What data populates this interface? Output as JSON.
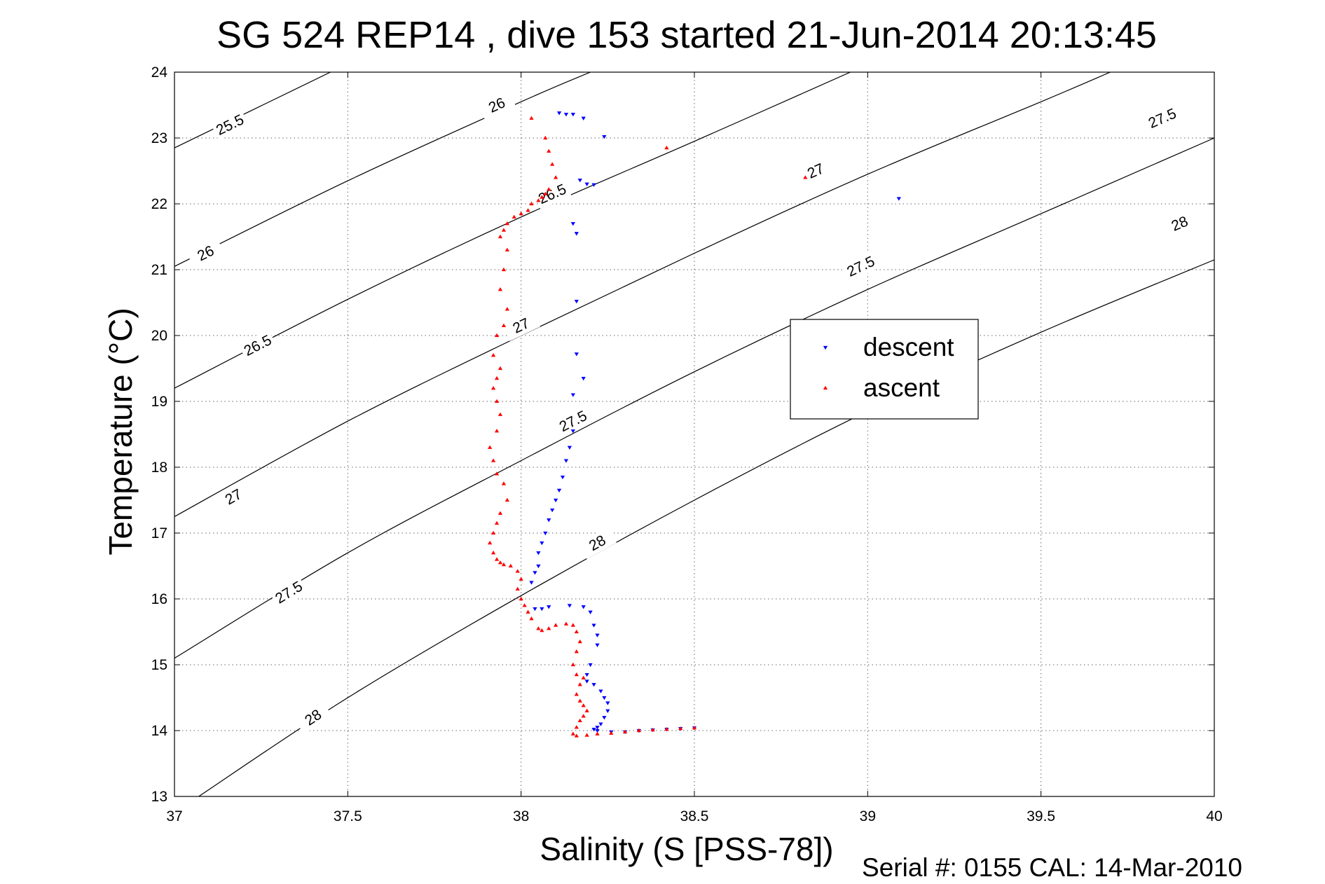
{
  "figure": {
    "title": "SG 524   REP14  , dive 153 started 21-Jun-2014 20:13:45",
    "footer": "Serial #: 0155  CAL: 14-Mar-2010"
  },
  "chart_data": {
    "type": "scatter",
    "title": "SG 524   REP14  , dive 153 started 21-Jun-2014 20:13:45",
    "xlabel": "Salinity (S [PSS-78])",
    "ylabel": "Temperature (°C)",
    "xlim": [
      37,
      40
    ],
    "ylim": [
      13,
      24
    ],
    "xticks": [
      "37",
      "37.5",
      "38",
      "38.5",
      "39",
      "39.5",
      "40"
    ],
    "yticks": [
      "13",
      "14",
      "15",
      "16",
      "17",
      "18",
      "19",
      "20",
      "21",
      "22",
      "23",
      "24"
    ],
    "grid": true,
    "legend_position": "center-right",
    "density_contours": [
      {
        "label": "25.5",
        "points": [
          [
            37,
            22.85
          ],
          [
            37.45,
            24.0
          ]
        ],
        "label_at": [
          37.16,
          23.2
        ]
      },
      {
        "label": "26",
        "points": [
          [
            37,
            21.05
          ],
          [
            37.5,
            22.35
          ],
          [
            38,
            23.55
          ],
          [
            38.2,
            24.0
          ]
        ],
        "label_at": [
          37.09,
          21.25
        ]
      },
      {
        "label": "26",
        "points": [
          [
            37,
            21.05
          ],
          [
            37.5,
            22.35
          ],
          [
            38,
            23.55
          ],
          [
            38.2,
            24.0
          ]
        ],
        "label_at": [
          37.93,
          23.5
        ]
      },
      {
        "label": "26.5",
        "points": [
          [
            37,
            19.2
          ],
          [
            37.5,
            20.55
          ],
          [
            38,
            21.8
          ],
          [
            38.5,
            22.95
          ],
          [
            38.95,
            24.0
          ]
        ],
        "label_at": [
          37.24,
          19.85
        ]
      },
      {
        "label": "26.5",
        "points": [
          [
            37,
            19.2
          ],
          [
            37.5,
            20.55
          ],
          [
            38,
            21.8
          ],
          [
            38.5,
            22.95
          ],
          [
            38.95,
            24.0
          ]
        ],
        "label_at": [
          38.09,
          22.15
        ]
      },
      {
        "label": "27",
        "points": [
          [
            37,
            17.25
          ],
          [
            37.5,
            18.7
          ],
          [
            38,
            20.0
          ],
          [
            38.5,
            21.25
          ],
          [
            39,
            22.45
          ],
          [
            39.5,
            23.55
          ],
          [
            39.7,
            24.0
          ]
        ],
        "label_at": [
          37.17,
          17.55
        ]
      },
      {
        "label": "27",
        "points": [
          [
            37,
            17.25
          ],
          [
            37.5,
            18.7
          ],
          [
            38,
            20.0
          ],
          [
            38.5,
            21.25
          ],
          [
            39,
            22.45
          ],
          [
            39.5,
            23.55
          ],
          [
            39.7,
            24.0
          ]
        ],
        "label_at": [
          38.0,
          20.15
        ]
      },
      {
        "label": "27",
        "points": [
          [
            37,
            17.25
          ],
          [
            37.5,
            18.7
          ],
          [
            38,
            20.0
          ],
          [
            38.5,
            21.25
          ],
          [
            39,
            22.45
          ],
          [
            39.5,
            23.55
          ],
          [
            39.7,
            24.0
          ]
        ],
        "label_at": [
          38.85,
          22.5
        ]
      },
      {
        "label": "27.5",
        "points": [
          [
            37,
            15.1
          ],
          [
            37.5,
            16.7
          ],
          [
            38,
            18.1
          ],
          [
            38.5,
            19.45
          ],
          [
            39,
            20.7
          ],
          [
            39.5,
            21.85
          ],
          [
            40,
            23.0
          ]
        ],
        "label_at": [
          37.33,
          16.1
        ]
      },
      {
        "label": "27.5",
        "points": [
          [
            37,
            15.1
          ],
          [
            37.5,
            16.7
          ],
          [
            38,
            18.1
          ],
          [
            38.5,
            19.45
          ],
          [
            39,
            20.7
          ],
          [
            39.5,
            21.85
          ],
          [
            40,
            23.0
          ]
        ],
        "label_at": [
          38.15,
          18.7
        ]
      },
      {
        "label": "27.5",
        "points": [
          [
            37,
            15.1
          ],
          [
            37.5,
            16.7
          ],
          [
            38,
            18.1
          ],
          [
            38.5,
            19.45
          ],
          [
            39,
            20.7
          ],
          [
            39.5,
            21.85
          ],
          [
            40,
            23.0
          ]
        ],
        "label_at": [
          38.98,
          21.05
        ]
      },
      {
        "label": "27.5",
        "points": [
          [
            37,
            15.1
          ],
          [
            37.5,
            16.7
          ],
          [
            38,
            18.1
          ],
          [
            38.5,
            19.45
          ],
          [
            39,
            20.7
          ],
          [
            39.5,
            21.85
          ],
          [
            40,
            23.0
          ]
        ],
        "label_at": [
          39.85,
          23.3
        ]
      },
      {
        "label": "28",
        "points": [
          [
            37.07,
            13.0
          ],
          [
            37.5,
            14.5
          ],
          [
            38,
            16.05
          ],
          [
            38.5,
            17.5
          ],
          [
            39,
            18.85
          ],
          [
            39.5,
            20.05
          ],
          [
            40,
            21.15
          ]
        ],
        "label_at": [
          37.4,
          14.2
        ]
      },
      {
        "label": "28",
        "points": [
          [
            37.07,
            13.0
          ],
          [
            37.5,
            14.5
          ],
          [
            38,
            16.05
          ],
          [
            38.5,
            17.5
          ],
          [
            39,
            18.85
          ],
          [
            39.5,
            20.05
          ],
          [
            40,
            21.15
          ]
        ],
        "label_at": [
          38.22,
          16.85
        ]
      },
      {
        "label": "28",
        "points": [
          [
            37.07,
            13.0
          ],
          [
            37.5,
            14.5
          ],
          [
            38,
            16.05
          ],
          [
            38.5,
            17.5
          ],
          [
            39,
            18.85
          ],
          [
            39.5,
            20.05
          ],
          [
            40,
            21.15
          ]
        ],
        "label_at": [
          39.9,
          21.7
        ]
      }
    ],
    "series": [
      {
        "name": "descent",
        "color": "#0000ff",
        "marker": "triangle-down",
        "x": [
          38.11,
          38.13,
          38.15,
          38.18,
          38.24,
          38.17,
          38.19,
          38.21,
          38.15,
          38.16,
          38.16,
          39.09,
          38.16,
          38.18,
          38.15,
          38.15,
          38.14,
          38.13,
          38.12,
          38.11,
          38.1,
          38.09,
          38.08,
          38.07,
          38.06,
          38.05,
          38.05,
          38.04,
          38.03,
          38.04,
          38.06,
          38.08,
          38.14,
          38.18,
          38.2,
          38.21,
          38.22,
          38.22,
          38.2,
          38.19,
          38.19,
          38.21,
          38.23,
          38.24,
          38.25,
          38.25,
          38.24,
          38.23,
          38.22,
          38.21,
          38.22,
          38.26,
          38.3,
          38.34,
          38.38,
          38.42,
          38.46,
          38.5
        ],
        "y": [
          23.38,
          23.36,
          23.36,
          23.3,
          23.02,
          22.36,
          22.3,
          22.29,
          21.7,
          21.55,
          20.52,
          22.08,
          19.72,
          19.35,
          19.1,
          18.55,
          18.3,
          18.1,
          17.85,
          17.65,
          17.5,
          17.35,
          17.2,
          17.0,
          16.85,
          16.7,
          16.5,
          16.4,
          16.25,
          15.85,
          15.85,
          15.88,
          15.9,
          15.88,
          15.8,
          15.6,
          15.45,
          15.3,
          15.0,
          14.85,
          14.75,
          14.7,
          14.6,
          14.5,
          14.42,
          14.3,
          14.2,
          14.1,
          14.05,
          14.02,
          14.0,
          13.98,
          13.98,
          14.0,
          14.01,
          14.02,
          14.03,
          14.04
        ]
      },
      {
        "name": "ascent",
        "color": "#ff0000",
        "marker": "triangle-up",
        "x": [
          38.03,
          38.07,
          38.08,
          38.09,
          38.1,
          38.42,
          38.82,
          38.08,
          38.07,
          38.06,
          38.05,
          38.03,
          38.02,
          38.0,
          37.98,
          37.96,
          37.95,
          37.94,
          37.96,
          37.95,
          37.94,
          37.96,
          37.95,
          37.93,
          37.92,
          37.94,
          37.93,
          37.92,
          37.93,
          37.94,
          37.93,
          37.91,
          37.92,
          37.93,
          37.95,
          37.96,
          37.94,
          37.93,
          37.92,
          37.91,
          37.92,
          37.93,
          37.94,
          37.95,
          37.97,
          37.99,
          38.0,
          37.99,
          38.0,
          38.01,
          38.02,
          38.03,
          38.05,
          38.06,
          38.08,
          38.1,
          38.13,
          38.15,
          38.16,
          38.17,
          38.16,
          38.15,
          38.16,
          38.18,
          38.17,
          38.16,
          38.17,
          38.18,
          38.19,
          38.18,
          38.17,
          38.16,
          38.15,
          38.16,
          38.19,
          38.22,
          38.26,
          38.3,
          38.34,
          38.38,
          38.42,
          38.46,
          38.5
        ],
        "y": [
          23.3,
          23.0,
          22.8,
          22.6,
          22.4,
          22.85,
          22.4,
          22.22,
          22.15,
          22.1,
          22.05,
          22.0,
          21.9,
          21.85,
          21.8,
          21.7,
          21.6,
          21.5,
          21.3,
          21.0,
          20.7,
          20.4,
          20.15,
          20.0,
          19.7,
          19.5,
          19.35,
          19.2,
          19.0,
          18.8,
          18.55,
          18.3,
          18.1,
          17.9,
          17.75,
          17.5,
          17.3,
          17.15,
          17.0,
          16.85,
          16.7,
          16.6,
          16.55,
          16.52,
          16.5,
          16.42,
          16.3,
          16.15,
          16.0,
          15.9,
          15.8,
          15.7,
          15.55,
          15.52,
          15.55,
          15.6,
          15.62,
          15.6,
          15.5,
          15.35,
          15.2,
          15.0,
          14.85,
          14.8,
          14.7,
          14.55,
          14.45,
          14.38,
          14.3,
          14.22,
          14.15,
          14.05,
          13.95,
          13.92,
          13.93,
          13.95,
          13.96,
          13.98,
          14.0,
          14.01,
          14.02,
          14.03,
          14.04
        ]
      }
    ]
  }
}
